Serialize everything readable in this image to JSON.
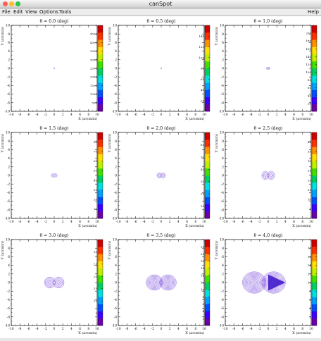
{
  "window": {
    "title": "canSpot"
  },
  "menu": {
    "file": "File",
    "edit": "Edit",
    "view": "View",
    "options": "Options",
    "tools": "Tools",
    "help": "Help"
  },
  "colors": {
    "close": "#ff5f57",
    "minimize": "#febc2e",
    "zoom": "#28c840",
    "spot": "#5a1fd6",
    "spot_fill": "#3a10c8"
  },
  "chart_data": [
    {
      "type": "heatmap",
      "title": "θ = 0.0 (deg)",
      "xlabel": "X (arcmin)",
      "ylabel": "Y (arcmin)",
      "xlim": [
        -10,
        10
      ],
      "ylim": [
        -10,
        10
      ],
      "colorbar": {
        "ticks": [
          "500",
          "1000",
          "1500",
          "2000",
          "2500",
          "3000",
          "3500",
          "4000",
          "4500"
        ]
      },
      "spot": {
        "x": 0,
        "y": 0,
        "width_arcmin": 0.15,
        "height_arcmin": 0.15
      }
    },
    {
      "type": "heatmap",
      "title": "θ = 0.5 (deg)",
      "xlabel": "X (arcmin)",
      "ylabel": "Y (arcmin)",
      "xlim": [
        -10,
        10
      ],
      "ylim": [
        -10,
        10
      ],
      "colorbar": {
        "ticks": [
          "20",
          "40",
          "60",
          "80",
          "100",
          "120",
          "140"
        ]
      },
      "spot": {
        "x": 0,
        "y": 0,
        "width_arcmin": 0.2,
        "height_arcmin": 0.2
      }
    },
    {
      "type": "heatmap",
      "title": "θ = 1.0 (deg)",
      "xlabel": "X (arcmin)",
      "ylabel": "Y (arcmin)",
      "xlim": [
        -10,
        10
      ],
      "ylim": [
        -10,
        10
      ],
      "colorbar": {
        "ticks": [
          "20",
          "40",
          "60",
          "80",
          "100",
          "120",
          "140",
          "160",
          "180",
          "200"
        ]
      },
      "spot": {
        "x": 0,
        "y": 0,
        "width_arcmin": 0.8,
        "height_arcmin": 0.5
      }
    },
    {
      "type": "heatmap",
      "title": "θ = 1.5 (deg)",
      "xlabel": "X (arcmin)",
      "ylabel": "Y (arcmin)",
      "xlim": [
        -10,
        10
      ],
      "ylim": [
        -10,
        10
      ],
      "colorbar": {
        "ticks": [
          "10",
          "20",
          "30",
          "40",
          "50",
          "60",
          "70",
          "80"
        ]
      },
      "spot": {
        "x": 0,
        "y": 0,
        "width_arcmin": 1.4,
        "height_arcmin": 0.8
      }
    },
    {
      "type": "heatmap",
      "title": "θ = 2.0 (deg)",
      "xlabel": "X (arcmin)",
      "ylabel": "Y (arcmin)",
      "xlim": [
        -10,
        10
      ],
      "ylim": [
        -10,
        10
      ],
      "colorbar": {
        "ticks": [
          "10",
          "20",
          "30",
          "40",
          "50",
          "60"
        ]
      },
      "spot": {
        "x": 0,
        "y": 0,
        "width_arcmin": 2.0,
        "height_arcmin": 1.2
      }
    },
    {
      "type": "heatmap",
      "title": "θ = 2.5 (deg)",
      "xlabel": "X (arcmin)",
      "ylabel": "Y (arcmin)",
      "xlim": [
        -10,
        10
      ],
      "ylim": [
        -10,
        10
      ],
      "colorbar": {
        "ticks": [
          "5",
          "10",
          "15",
          "20",
          "25",
          "30",
          "35",
          "40"
        ]
      },
      "spot": {
        "x": 0,
        "y": 0,
        "width_arcmin": 3.0,
        "height_arcmin": 2.0
      }
    },
    {
      "type": "heatmap",
      "title": "θ = 3.0 (deg)",
      "xlabel": "X (arcmin)",
      "ylabel": "Y (arcmin)",
      "xlim": [
        -10,
        10
      ],
      "ylim": [
        -10,
        10
      ],
      "colorbar": {
        "ticks": [
          "5",
          "10",
          "15",
          "20",
          "25",
          "30"
        ]
      },
      "spot": {
        "x": 0,
        "y": 0,
        "width_arcmin": 4.6,
        "height_arcmin": 2.6
      }
    },
    {
      "type": "heatmap",
      "title": "θ = 3.5 (deg)",
      "xlabel": "X (arcmin)",
      "ylabel": "Y (arcmin)",
      "xlim": [
        -10,
        10
      ],
      "ylim": [
        -10,
        10
      ],
      "colorbar": {
        "ticks": [
          "2",
          "4",
          "6",
          "8",
          "10",
          "12",
          "14",
          "16",
          "18",
          "20",
          "22"
        ]
      },
      "spot": {
        "x": 0,
        "y": 0,
        "width_arcmin": 7.0,
        "height_arcmin": 3.6
      }
    },
    {
      "type": "heatmap",
      "title": "θ = 4.0 (deg)",
      "xlabel": "X (arcmin)",
      "ylabel": "Y (arcmin)",
      "xlim": [
        -10,
        10
      ],
      "ylim": [
        -10,
        10
      ],
      "colorbar": {
        "ticks": [
          "2",
          "4",
          "6",
          "8",
          "10",
          "12",
          "14",
          "16",
          "18"
        ]
      },
      "spot": {
        "x": -1,
        "y": 0,
        "width_arcmin": 10.0,
        "height_arcmin": 5.0
      }
    }
  ]
}
